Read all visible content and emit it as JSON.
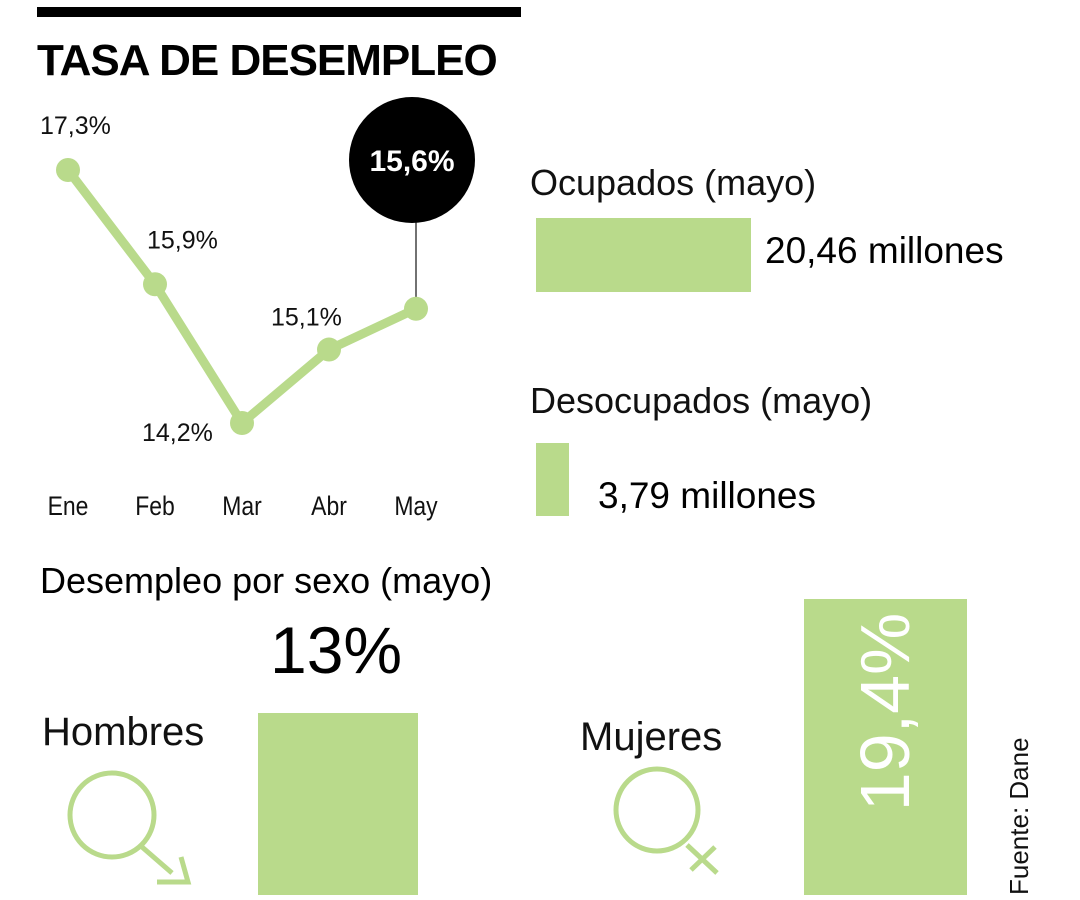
{
  "title": "TASA DE DESEMPLEO",
  "colors": {
    "accent": "#b9da8b",
    "callout": "#000000",
    "text": "#111111"
  },
  "chart_data": [
    {
      "type": "line",
      "title": "TASA DE DESEMPLEO",
      "categories": [
        "Ene",
        "Feb",
        "Mar",
        "Abr",
        "May"
      ],
      "values": [
        17.3,
        15.9,
        14.2,
        15.1,
        15.6
      ],
      "labels": [
        "17,3%",
        "15,9%",
        "14,2%",
        "15,1%",
        "15,6%"
      ],
      "highlight": {
        "category": "May",
        "label": "15,6%"
      },
      "unit": "%",
      "ylim": [
        14.2,
        17.3
      ],
      "grid": false,
      "xlabel": "",
      "ylabel": ""
    },
    {
      "type": "bar",
      "orientation": "horizontal",
      "series": [
        {
          "name": "Ocupados (mayo)",
          "value": 20.46,
          "label": "20,46 millones"
        },
        {
          "name": "Desocupados (mayo)",
          "value": 3.79,
          "label": "3,79 millones"
        }
      ],
      "unit": "millones"
    },
    {
      "type": "bar",
      "title": "Desempleo por sexo (mayo)",
      "categories": [
        "Hombres",
        "Mujeres"
      ],
      "values": [
        13,
        19.4
      ],
      "labels": [
        "13%",
        "19,4%"
      ],
      "unit": "%"
    }
  ],
  "ocupados": {
    "label": "Ocupados (mayo)",
    "value_label": "20,46 millones"
  },
  "desocupados": {
    "label": "Desocupados (mayo)",
    "value_label": "3,79 millones"
  },
  "sexo": {
    "title": "Desempleo por sexo (mayo)",
    "hombres": {
      "label": "Hombres",
      "value_label": "13%",
      "icon": "male-symbol-icon"
    },
    "mujeres": {
      "label": "Mujeres",
      "value_label": "19,4%",
      "icon": "female-symbol-icon"
    }
  },
  "source": "Fuente: Dane"
}
